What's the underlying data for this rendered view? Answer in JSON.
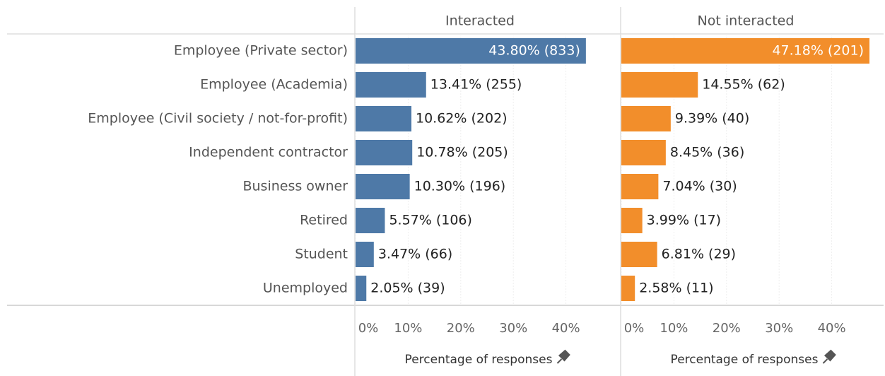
{
  "chart_data": {
    "type": "bar",
    "categories": [
      "Employee (Private sector)",
      "Employee (Academia)",
      "Employee (Civil society / not-for-profit)",
      "Independent contractor",
      "Business owner",
      "Retired",
      "Student",
      "Unemployed"
    ],
    "series": [
      {
        "name": "Interacted",
        "color": "#4e79a7",
        "values": [
          43.8,
          13.41,
          10.62,
          10.78,
          10.3,
          5.57,
          3.47,
          2.05
        ],
        "value_labels": [
          "43.80% (833)",
          "13.41% (255)",
          "10.62% (202)",
          "10.78% (205)",
          "10.30% (196)",
          "5.57% (106)",
          "3.47% (66)",
          "2.05% (39)"
        ]
      },
      {
        "name": "Not interacted",
        "color": "#f28e2b",
        "values": [
          47.18,
          14.55,
          9.39,
          8.45,
          7.04,
          3.99,
          6.81,
          2.58
        ],
        "value_labels": [
          "47.18% (201)",
          "14.55% (62)",
          "9.39% (40)",
          "8.45% (36)",
          "7.04% (30)",
          "3.99% (17)",
          "6.81% (29)",
          "2.58% (11)"
        ]
      }
    ],
    "xlabel": "Percentage of responses",
    "xlim": [
      0,
      50
    ],
    "xticks": [
      {
        "value": 0,
        "label": "0%"
      },
      {
        "value": 10,
        "label": "10%"
      },
      {
        "value": 20,
        "label": "20%"
      },
      {
        "value": 30,
        "label": "30%"
      },
      {
        "value": 40,
        "label": "40%"
      }
    ],
    "grid": true
  }
}
